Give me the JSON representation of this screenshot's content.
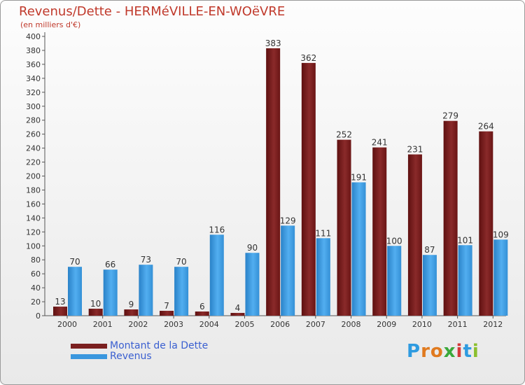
{
  "header": {
    "title": "Revenus/Dette - HERMéVILLE-EN-WOëVRE",
    "subtitle": "(en milliers d'€)"
  },
  "chart_data": {
    "type": "bar",
    "categories": [
      "2000",
      "2001",
      "2002",
      "2003",
      "2004",
      "2005",
      "2006",
      "2007",
      "2008",
      "2009",
      "2010",
      "2011",
      "2012"
    ],
    "series": [
      {
        "name": "Montant de la Dette",
        "color": "#7a1f1f",
        "values": [
          13,
          10,
          9,
          7,
          6,
          4,
          383,
          362,
          252,
          241,
          231,
          279,
          264
        ]
      },
      {
        "name": "Revenus",
        "color": "#3a97de",
        "values": [
          70,
          66,
          73,
          70,
          116,
          90,
          129,
          111,
          191,
          100,
          87,
          101,
          109
        ]
      }
    ],
    "ylim": [
      0,
      400
    ],
    "ytick_step": 20,
    "grid": false,
    "legend_position": "bottom-left"
  },
  "legend": {
    "items": [
      {
        "label": "Montant de la Dette",
        "color": "#7a1f1f"
      },
      {
        "label": "Revenus",
        "color": "#3a97de"
      }
    ]
  },
  "logo": {
    "text": "Proxiti"
  }
}
